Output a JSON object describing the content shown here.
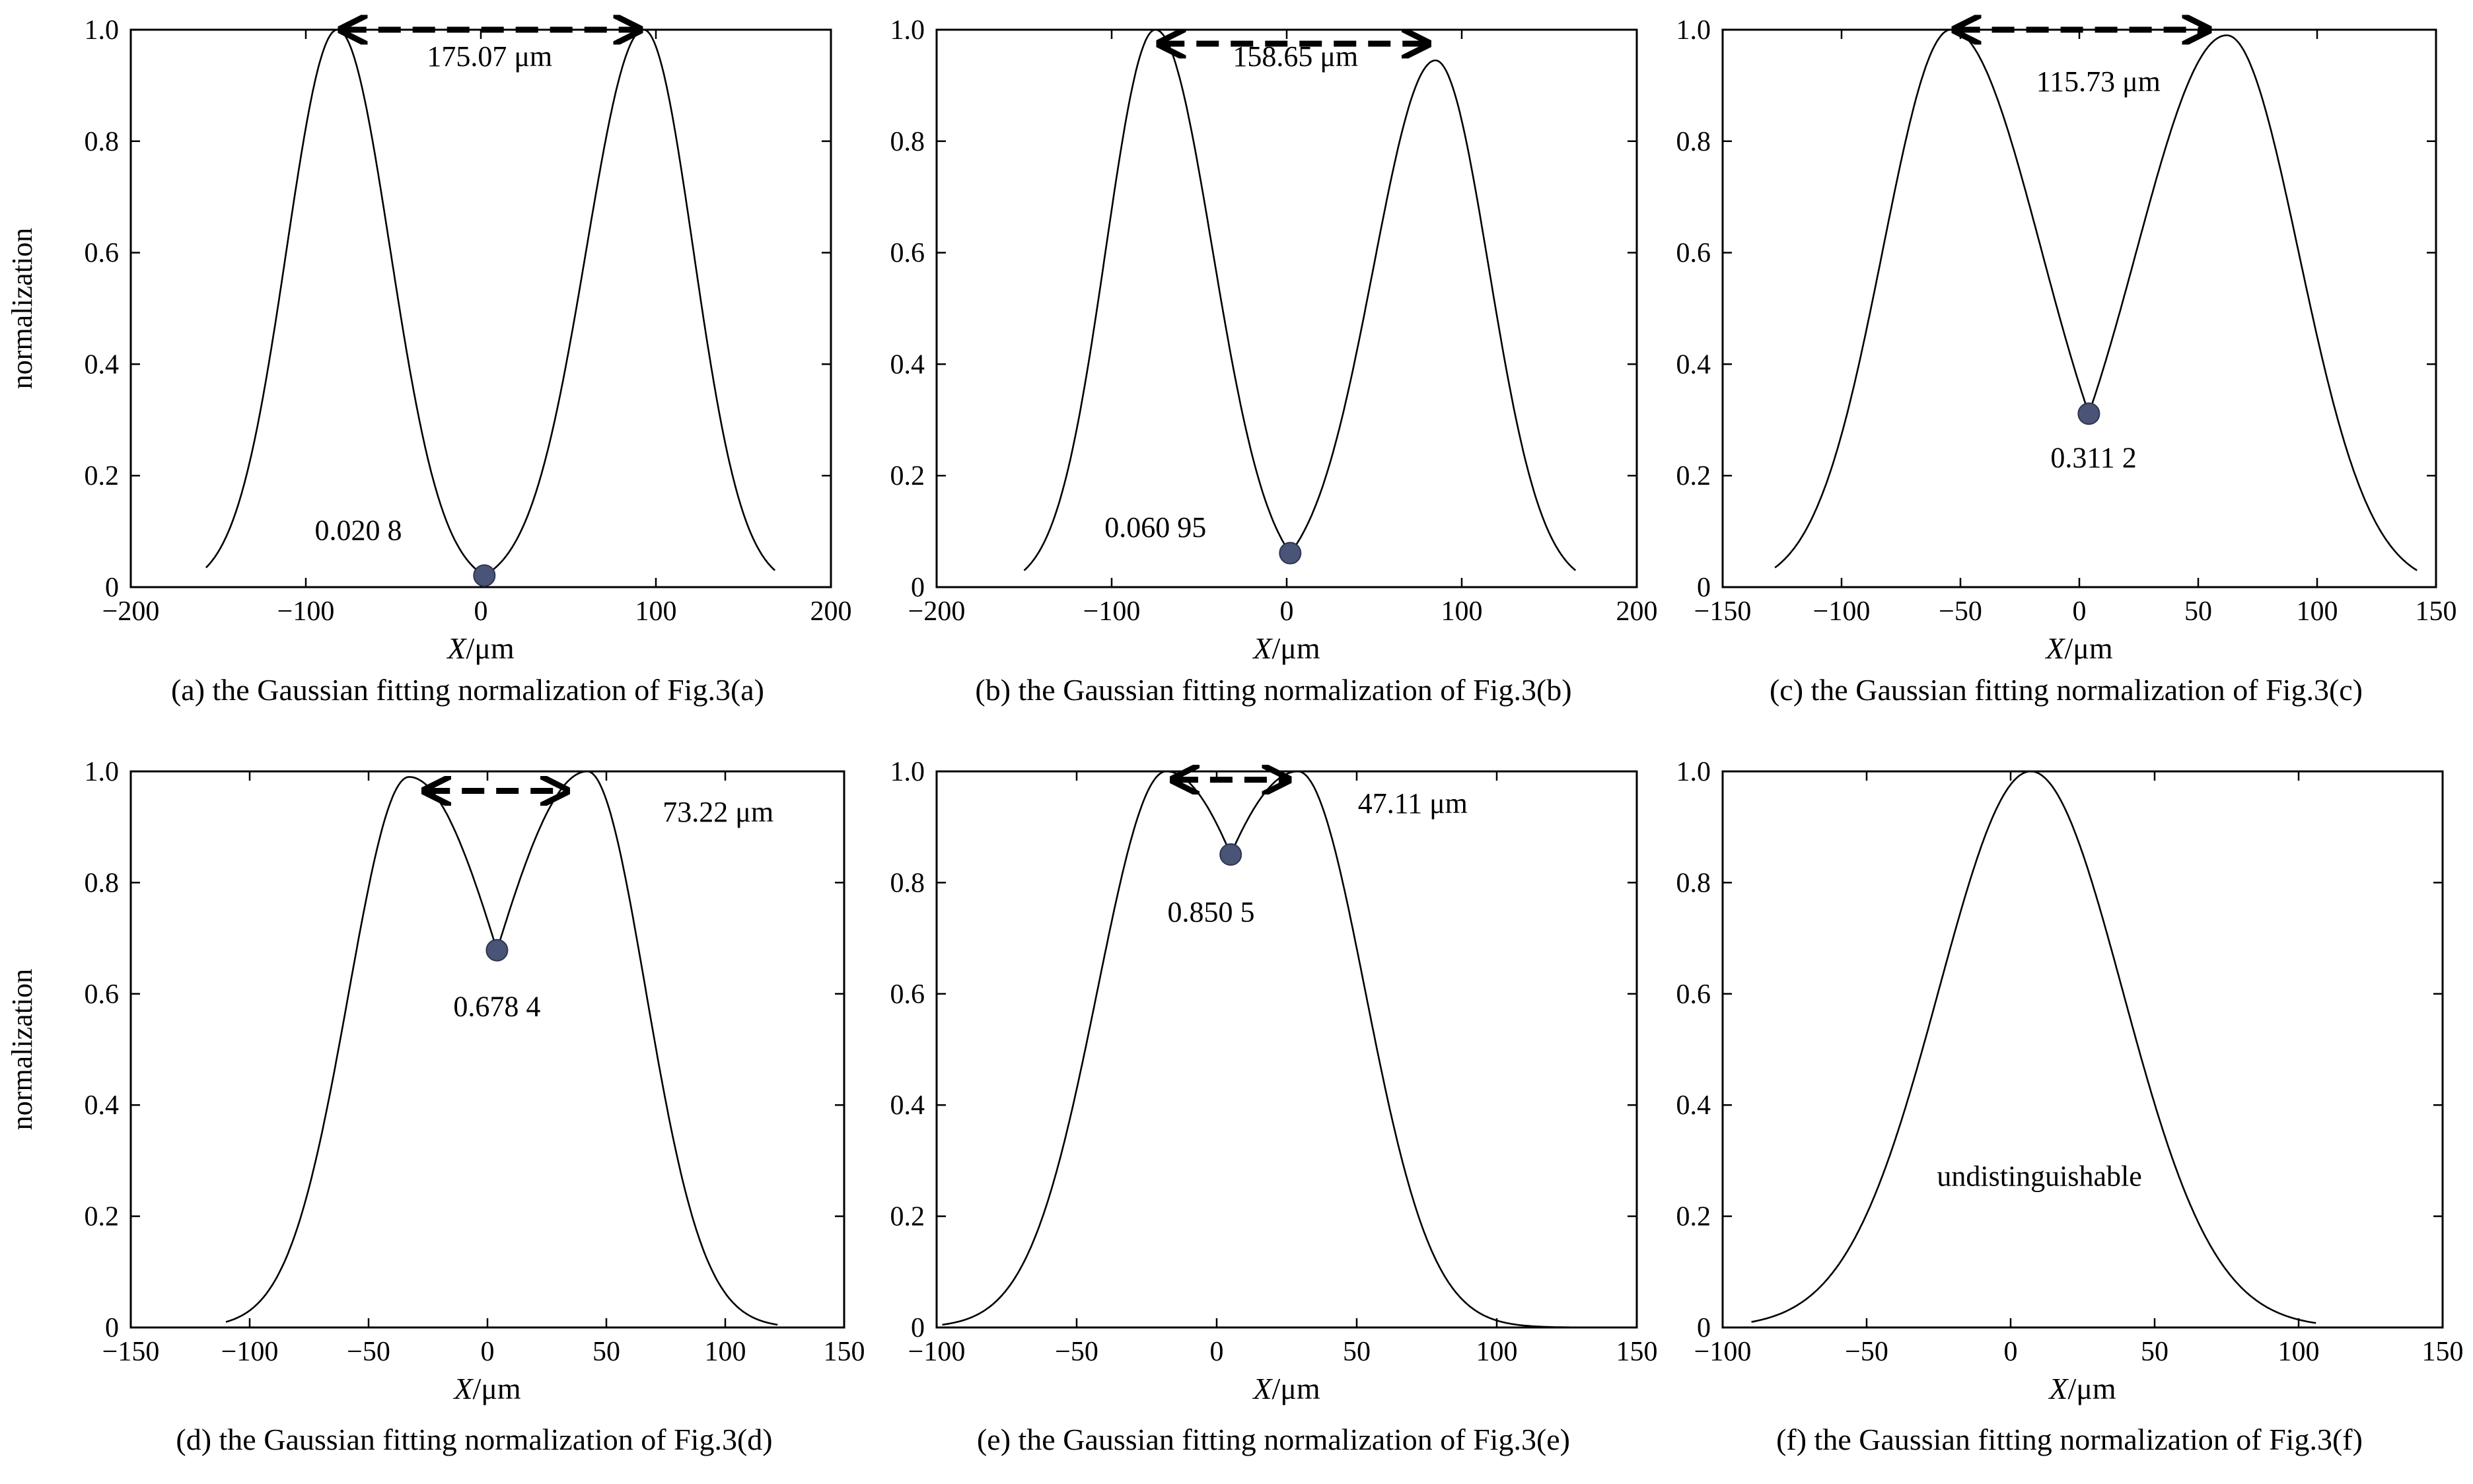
{
  "colors": {
    "curve": "#000000",
    "marker": "#4a5477",
    "marker_edge": "#2f3552",
    "axes": "#000000",
    "background": "#ffffff"
  },
  "chart_data": [
    {
      "type": "line",
      "panel": "a",
      "caption": "(a) the Gaussian fitting normalization of Fig.3(a)",
      "xlabel_italic": "X",
      "xlabel_unit": "/μm",
      "ylabel": "normalization",
      "xlim": [
        -200,
        200
      ],
      "ylim": [
        0,
        1
      ],
      "xticks": [
        -200,
        -100,
        0,
        100,
        200
      ],
      "xtick_labels": [
        "−200",
        "−100",
        "0",
        "100",
        "200"
      ],
      "yticks": [
        0,
        0.2,
        0.4,
        0.6,
        0.8,
        1.0
      ],
      "ytick_labels": [
        "0",
        "0.2",
        "0.4",
        "0.6",
        "0.8",
        "1.0"
      ],
      "curve": {
        "x_range": [
          -157,
          168
        ],
        "peaks": [
          {
            "x": -82,
            "y": 1.0
          },
          {
            "x": 93,
            "y": 1.0
          }
        ],
        "min": {
          "x": 2,
          "y": 0.0208
        },
        "end_values": [
          0.035,
          0.03
        ]
      },
      "min_point": {
        "x": 2,
        "y": 0.0208
      },
      "min_label": "0.020 8",
      "min_label_pos": [
        -70,
        0.085
      ],
      "separation_label": "175.07 μm",
      "separation_label_pos": [
        5,
        0.935
      ],
      "arrow": {
        "x1": -82,
        "x2": 93,
        "y": 1.0
      }
    },
    {
      "type": "line",
      "panel": "b",
      "caption": "(b) the Gaussian fitting normalization of Fig.3(b)",
      "xlabel_italic": "X",
      "xlabel_unit": "/μm",
      "ylabel": "",
      "xlim": [
        -200,
        200
      ],
      "ylim": [
        0,
        1
      ],
      "xticks": [
        -200,
        -100,
        0,
        100,
        200
      ],
      "xtick_labels": [
        "−200",
        "−100",
        "0",
        "100",
        "200"
      ],
      "yticks": [
        0,
        0.2,
        0.4,
        0.6,
        0.8,
        1.0
      ],
      "ytick_labels": [
        "0",
        "0.2",
        "0.4",
        "0.6",
        "0.8",
        "1.0"
      ],
      "curve": {
        "x_range": [
          -150,
          165
        ],
        "peaks": [
          {
            "x": -75,
            "y": 1.0
          },
          {
            "x": 85,
            "y": 0.945
          }
        ],
        "min": {
          "x": 2,
          "y": 0.061
        },
        "end_values": [
          0.03,
          0.03
        ]
      },
      "min_point": {
        "x": 2,
        "y": 0.06095
      },
      "min_label": "0.060 95",
      "min_label_pos": [
        -75,
        0.09
      ],
      "separation_label": "158.65 μm",
      "separation_label_pos": [
        5,
        0.935
      ],
      "arrow": {
        "x1": -75,
        "x2": 83,
        "y": 0.975
      }
    },
    {
      "type": "line",
      "panel": "c",
      "caption": "(c) the Gaussian fitting normalization of Fig.3(c)",
      "xlabel_italic": "X",
      "xlabel_unit": "/μm",
      "ylabel": "",
      "xlim": [
        -150,
        150
      ],
      "ylim": [
        0,
        1
      ],
      "xticks": [
        -150,
        -100,
        -50,
        0,
        50,
        100,
        150
      ],
      "xtick_labels": [
        "−150",
        "−100",
        "−50",
        "0",
        "50",
        "100",
        "150"
      ],
      "yticks": [
        0,
        0.2,
        0.4,
        0.6,
        0.8,
        1.0
      ],
      "ytick_labels": [
        "0",
        "0.2",
        "0.4",
        "0.6",
        "0.8",
        "1.0"
      ],
      "curve": {
        "x_range": [
          -128,
          142
        ],
        "peaks": [
          {
            "x": -54,
            "y": 1.0
          },
          {
            "x": 62,
            "y": 0.99
          }
        ],
        "min": {
          "x": 4,
          "y": 0.3112
        },
        "end_values": [
          0.035,
          0.03
        ]
      },
      "min_point": {
        "x": 4,
        "y": 0.3112
      },
      "min_label": "0.311 2",
      "min_label_pos": [
        6,
        0.215
      ],
      "separation_label": "115.73 μm",
      "separation_label_pos": [
        8,
        0.89
      ],
      "arrow": {
        "x1": -54,
        "x2": 56,
        "y": 1.0
      }
    },
    {
      "type": "line",
      "panel": "d",
      "caption": "(d) the Gaussian fitting normalization of Fig.3(d)",
      "xlabel_italic": "X",
      "xlabel_unit": "/μm",
      "ylabel": "normalization",
      "xlim": [
        -150,
        150
      ],
      "ylim": [
        0,
        1
      ],
      "xticks": [
        -150,
        -100,
        -50,
        0,
        50,
        100,
        150
      ],
      "xtick_labels": [
        "−150",
        "−100",
        "−50",
        "0",
        "50",
        "100",
        "150"
      ],
      "yticks": [
        0,
        0.2,
        0.4,
        0.6,
        0.8,
        1.0
      ],
      "ytick_labels": [
        "0",
        "0.2",
        "0.4",
        "0.6",
        "0.8",
        "1.0"
      ],
      "curve": {
        "x_range": [
          -110,
          122
        ],
        "peaks": [
          {
            "x": -33,
            "y": 0.99
          },
          {
            "x": 42,
            "y": 1.0
          }
        ],
        "min": {
          "x": 4,
          "y": 0.6784
        },
        "end_values": [
          0.01,
          0.005
        ]
      },
      "min_point": {
        "x": 4,
        "y": 0.6784
      },
      "min_label": "0.678 4",
      "min_label_pos": [
        4,
        0.56
      ],
      "separation_label": "73.22 μm",
      "separation_label_pos": [
        97,
        0.91
      ],
      "arrow": {
        "x1": -28,
        "x2": 35,
        "y": 0.965
      }
    },
    {
      "type": "line",
      "panel": "e",
      "caption": "(e) the Gaussian fitting normalization of Fig.3(e)",
      "xlabel_italic": "X",
      "xlabel_unit": "/μm",
      "ylabel": "",
      "xlim": [
        -100,
        150
      ],
      "ylim": [
        0,
        1
      ],
      "xticks": [
        -100,
        -50,
        0,
        50,
        100,
        150
      ],
      "xtick_labels": [
        "−100",
        "−50",
        "0",
        "50",
        "100",
        "150"
      ],
      "yticks": [
        0,
        0.2,
        0.4,
        0.6,
        0.8,
        1.0
      ],
      "ytick_labels": [
        "0",
        "0.2",
        "0.4",
        "0.6",
        "0.8",
        "1.0"
      ],
      "curve": {
        "x_range": [
          -98,
          132
        ],
        "peaks": [
          {
            "x": -18,
            "y": 1.0
          },
          {
            "x": 29,
            "y": 1.0
          }
        ],
        "min": {
          "x": 5,
          "y": 0.8505
        },
        "end_values": [
          0.005,
          0.0
        ]
      },
      "min_point": {
        "x": 5,
        "y": 0.8505
      },
      "min_label": "0.850 5",
      "min_label_pos": [
        -2,
        0.73
      ],
      "separation_label": "47.11 μm",
      "separation_label_pos": [
        70,
        0.925
      ],
      "arrow": {
        "x1": -17,
        "x2": 27,
        "y": 0.985
      }
    },
    {
      "type": "line",
      "panel": "f",
      "caption": "(f) the Gaussian fitting normalization of Fig.3(f)",
      "xlabel_italic": "X",
      "xlabel_unit": "/μm",
      "ylabel": "",
      "xlim": [
        -100,
        150
      ],
      "ylim": [
        0,
        1
      ],
      "xticks": [
        -100,
        -50,
        0,
        50,
        100,
        150
      ],
      "xtick_labels": [
        "−100",
        "−50",
        "0",
        "50",
        "100",
        "150"
      ],
      "yticks": [
        0,
        0.2,
        0.4,
        0.6,
        0.8,
        1.0
      ],
      "ytick_labels": [
        "0",
        "0.2",
        "0.4",
        "0.6",
        "0.8",
        "1.0"
      ],
      "curve": {
        "x_range": [
          -90,
          106
        ],
        "peaks": [
          {
            "x": 7,
            "y": 1.0
          }
        ],
        "end_values": [
          0.01,
          0.008
        ]
      },
      "min_point": null,
      "min_label": "",
      "separation_label": "undistinguishable",
      "separation_label_pos": [
        10,
        0.255
      ],
      "arrow": null
    }
  ]
}
